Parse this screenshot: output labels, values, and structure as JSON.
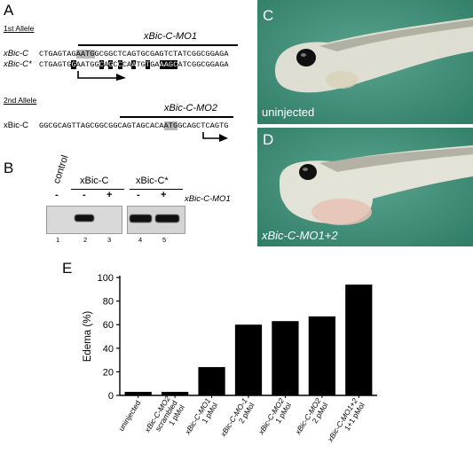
{
  "panels": {
    "A": {
      "letter": "A",
      "allele1": {
        "label": "1st Allele",
        "mo_name": "xBic-C-MO1",
        "rows": [
          {
            "name": "xBic-C",
            "segments": [
              {
                "t": "CTGAGTAG",
                "s": "n"
              },
              {
                "t": "AATG",
                "s": "g"
              },
              {
                "t": "GCGGCTCAGTGCGAGTCTATCGGCGGAGA",
                "s": "n"
              }
            ]
          },
          {
            "name": "xBic-C*",
            "segments": [
              {
                "t": "CTGAGTG",
                "s": "n"
              },
              {
                "t": "G",
                "s": "d"
              },
              {
                "t": "AATGG",
                "s": "n"
              },
              {
                "t": "C",
                "s": "d"
              },
              {
                "t": "A",
                "s": "n"
              },
              {
                "t": "G",
                "s": "d"
              },
              {
                "t": "C",
                "s": "n"
              },
              {
                "t": "C",
                "s": "d"
              },
              {
                "t": "CA",
                "s": "n"
              },
              {
                "t": "A",
                "s": "d"
              },
              {
                "t": "TG",
                "s": "n"
              },
              {
                "t": "T",
                "s": "d"
              },
              {
                "t": "GA",
                "s": "n"
              },
              {
                "t": "AAGC",
                "s": "d"
              },
              {
                "t": "ATCGGCGGAGA",
                "s": "n"
              }
            ]
          }
        ]
      },
      "allele2": {
        "label": "2nd Allele",
        "mo_name": "xBic-C-MO2",
        "rows": [
          {
            "name": "xBic-C",
            "segments": [
              {
                "t": "GGCGCAGTTAGCGGCGGCAGTAGCACA",
                "s": "n"
              },
              {
                "t": "ATG",
                "s": "g"
              },
              {
                "t": "GCAGCTCAGTG",
                "s": "n"
              }
            ]
          }
        ]
      }
    },
    "B": {
      "letter": "B",
      "control_label": "control",
      "group1": "xBic-C",
      "group2": "xBic-C*",
      "mo_label": "xBic-C-MO1",
      "signs": [
        "-",
        "-",
        "+",
        "-",
        "+"
      ],
      "lanes": [
        "1",
        "2",
        "3",
        "4",
        "5"
      ]
    },
    "C": {
      "letter": "C",
      "caption": "uninjected"
    },
    "D": {
      "letter": "D",
      "caption": "xBic-C-MO1+2"
    },
    "E": {
      "letter": "E",
      "chart_data": {
        "type": "bar",
        "ylabel": "Edema (%)",
        "ylim": [
          0,
          100
        ],
        "yticks": [
          "0",
          "20",
          "40",
          "60",
          "80",
          "100"
        ],
        "categories": [
          [
            "uninjected"
          ],
          [
            "xBic-C-MO2",
            "scrambled",
            "1 pMol"
          ],
          [
            "xBic-C-MO1",
            "1 pMol"
          ],
          [
            "xBic-C-MO-1",
            "2 pMol"
          ],
          [
            "xBic-C-MO2",
            "1 pMol"
          ],
          [
            "xBic-C-MO2",
            "2 pMol"
          ],
          [
            "xBic-C-MO1+2",
            "1+1 pMol"
          ]
        ],
        "values": [
          3,
          3,
          24,
          60,
          63,
          67,
          94
        ],
        "bar_color": "#000000"
      }
    }
  }
}
